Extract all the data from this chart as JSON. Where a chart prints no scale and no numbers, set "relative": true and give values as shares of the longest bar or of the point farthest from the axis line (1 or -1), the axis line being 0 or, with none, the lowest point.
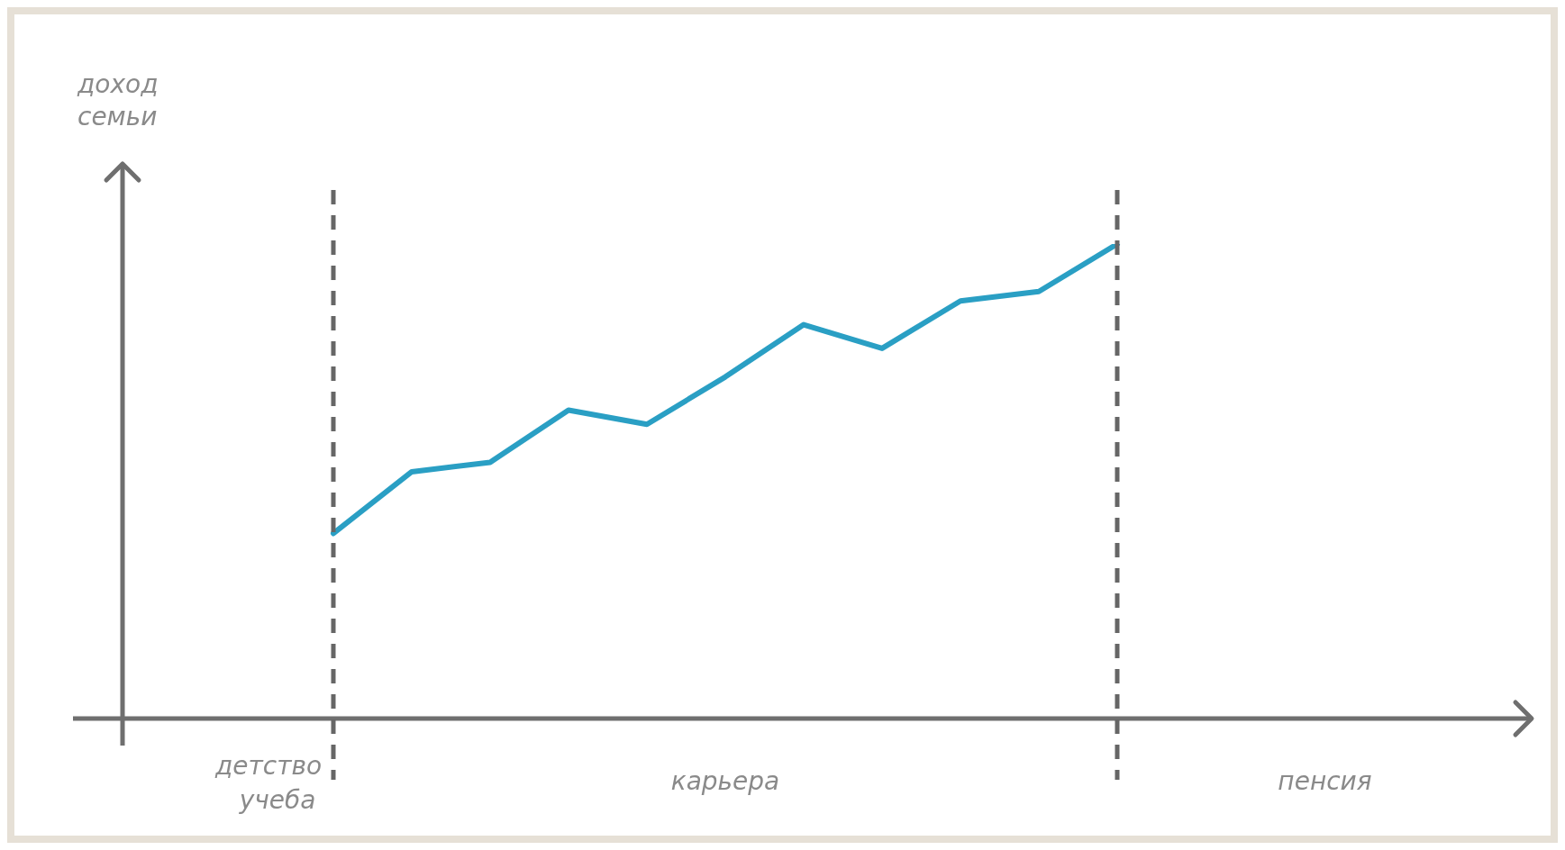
{
  "chart_data": {
    "type": "line",
    "ylabel": "доход семьи",
    "relative": true,
    "categories": [
      null,
      null,
      null,
      null,
      null,
      null,
      null,
      null,
      null,
      null,
      null,
      null,
      null,
      null,
      null,
      null
    ],
    "series": [
      {
        "color": "#2a9fc4",
        "values": [
          null,
          null,
          0.39,
          0.52,
          0.54,
          0.65,
          0.62,
          0.72,
          0.83,
          0.78,
          0.88,
          0.9,
          1.0,
          null,
          null,
          null
        ]
      }
    ],
    "annotations": [
      "детство\nучеба",
      "карьера",
      "пенсия"
    ],
    "marker": "none",
    "line_style": "solid",
    "legend": false
  }
}
